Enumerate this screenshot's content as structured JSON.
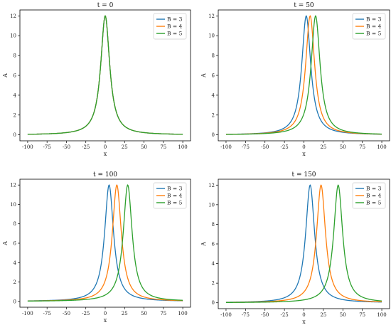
{
  "chart_data": [
    {
      "type": "line",
      "title": "t = 0",
      "xlabel": "x",
      "ylabel": "A",
      "xlim": [
        -100,
        100
      ],
      "ylim": [
        0,
        12
      ],
      "xticks": [
        -100,
        -75,
        -50,
        -25,
        0,
        25,
        50,
        75,
        100
      ],
      "yticks": [
        0,
        2,
        4,
        6,
        8,
        10,
        12
      ],
      "legend_position": "top-right",
      "curve": "peak 12, Lorentzian-like decay to ~0 at the edges",
      "series": [
        {
          "name": "B = 3",
          "peak_x": 0,
          "peak_y": 12,
          "color": "#1f77b4"
        },
        {
          "name": "B = 4",
          "peak_x": 0,
          "peak_y": 12,
          "color": "#ff7f0e"
        },
        {
          "name": "B = 5",
          "peak_x": 0,
          "peak_y": 12,
          "color": "#2ca02c"
        }
      ]
    },
    {
      "type": "line",
      "title": "t = 50",
      "xlabel": "x",
      "ylabel": "A",
      "xlim": [
        -100,
        100
      ],
      "ylim": [
        0,
        12
      ],
      "xticks": [
        -100,
        -75,
        -50,
        -25,
        0,
        25,
        50,
        75,
        100
      ],
      "yticks": [
        0,
        2,
        4,
        6,
        8,
        10,
        12
      ],
      "legend_position": "top-right",
      "series": [
        {
          "name": "B = 3",
          "peak_x": 3,
          "peak_y": 12,
          "color": "#1f77b4"
        },
        {
          "name": "B = 4",
          "peak_x": 8,
          "peak_y": 12,
          "color": "#ff7f0e"
        },
        {
          "name": "B = 5",
          "peak_x": 15,
          "peak_y": 12,
          "color": "#2ca02c"
        }
      ]
    },
    {
      "type": "line",
      "title": "t = 100",
      "xlabel": "x",
      "ylabel": "A",
      "xlim": [
        -100,
        100
      ],
      "ylim": [
        0,
        12
      ],
      "xticks": [
        -100,
        -75,
        -50,
        -25,
        0,
        25,
        50,
        75,
        100
      ],
      "yticks": [
        0,
        2,
        4,
        6,
        8,
        10,
        12
      ],
      "legend_position": "top-right",
      "series": [
        {
          "name": "B = 3",
          "peak_x": 5,
          "peak_y": 12,
          "color": "#1f77b4"
        },
        {
          "name": "B = 4",
          "peak_x": 15,
          "peak_y": 12,
          "color": "#ff7f0e"
        },
        {
          "name": "B = 5",
          "peak_x": 29,
          "peak_y": 12,
          "color": "#2ca02c"
        }
      ]
    },
    {
      "type": "line",
      "title": "t = 150",
      "xlabel": "x",
      "ylabel": "A",
      "xlim": [
        -100,
        100
      ],
      "ylim": [
        0,
        12
      ],
      "xticks": [
        -100,
        -75,
        -50,
        -25,
        0,
        25,
        50,
        75,
        100
      ],
      "yticks": [
        0,
        2,
        4,
        6,
        8,
        10,
        12
      ],
      "legend_position": "top-right",
      "series": [
        {
          "name": "B = 3",
          "peak_x": 8,
          "peak_y": 12,
          "color": "#1f77b4"
        },
        {
          "name": "B = 4",
          "peak_x": 22,
          "peak_y": 12,
          "color": "#ff7f0e"
        },
        {
          "name": "B = 5",
          "peak_x": 44,
          "peak_y": 12,
          "color": "#2ca02c"
        }
      ]
    }
  ]
}
